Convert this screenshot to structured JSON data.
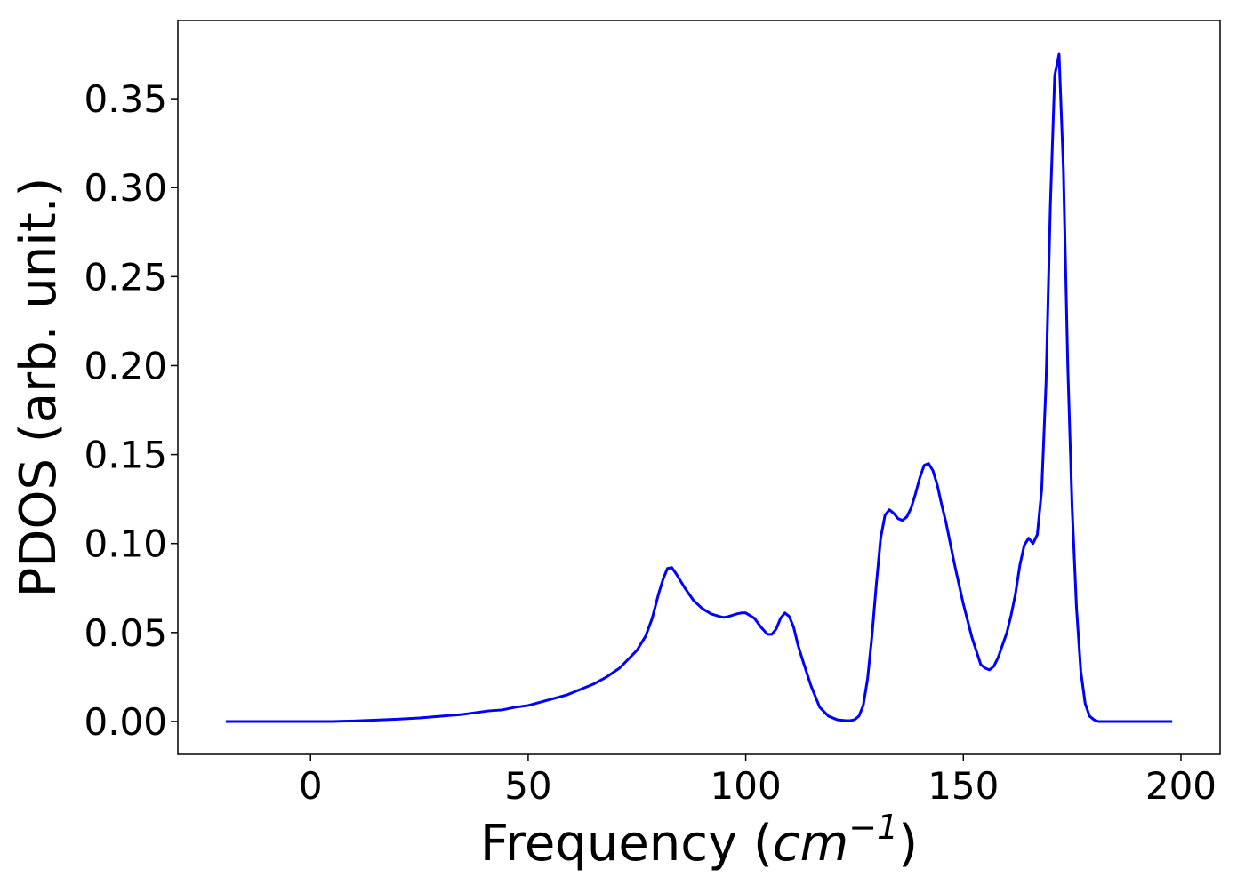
{
  "chart_data": {
    "type": "line",
    "title": "",
    "xlabel": "Frequency (",
    "xlabel_unit": "cm",
    "xlabel_exponent": "−1",
    "xlabel_close": ")",
    "ylabel": "PDOS (arb. unit.)",
    "xlim": [
      -30.5,
      209
    ],
    "ylim": [
      -0.0185,
      0.394
    ],
    "xticks": [
      0,
      50,
      100,
      150,
      200
    ],
    "xtick_labels": [
      "0",
      "50",
      "100",
      "150",
      "200"
    ],
    "yticks": [
      0.0,
      0.05,
      0.1,
      0.15,
      0.2,
      0.25,
      0.3,
      0.35
    ],
    "ytick_labels": [
      "0.00",
      "0.05",
      "0.10",
      "0.15",
      "0.20",
      "0.25",
      "0.30",
      "0.35"
    ],
    "grid": false,
    "series": [
      {
        "color": "#0000ff",
        "x": [
          -19.5,
          0,
          5,
          10,
          15,
          20,
          25,
          30,
          35,
          38,
          41,
          44,
          47,
          50,
          53,
          56,
          59,
          62,
          65,
          68,
          71,
          73,
          75,
          77,
          78.5,
          80,
          81,
          82,
          83,
          84,
          86,
          88,
          90,
          92,
          94,
          95,
          96,
          98,
          99,
          100,
          102,
          103.5,
          105,
          106,
          107,
          108,
          109,
          110,
          111,
          112,
          113,
          115,
          117,
          119,
          121,
          123,
          124,
          125,
          126,
          127,
          128,
          129,
          130,
          131,
          132,
          133,
          134,
          135,
          136,
          137,
          138,
          139,
          140,
          141,
          142,
          143,
          144,
          145,
          146,
          147,
          148,
          150,
          152,
          154,
          155,
          156,
          157,
          158,
          159,
          160,
          161,
          162,
          163,
          164,
          165,
          166,
          167,
          168,
          169,
          170,
          171,
          172,
          173,
          174,
          175,
          176,
          177,
          178,
          179,
          180,
          181,
          182,
          183,
          184,
          186,
          190,
          198
        ],
        "y": [
          0,
          0,
          0,
          0.0003,
          0.0008,
          0.0013,
          0.002,
          0.003,
          0.004,
          0.005,
          0.006,
          0.0065,
          0.008,
          0.009,
          0.011,
          0.013,
          0.015,
          0.018,
          0.021,
          0.025,
          0.03,
          0.035,
          0.04,
          0.048,
          0.058,
          0.072,
          0.08,
          0.086,
          0.0865,
          0.083,
          0.075,
          0.068,
          0.0635,
          0.0605,
          0.059,
          0.0585,
          0.059,
          0.0605,
          0.061,
          0.061,
          0.058,
          0.053,
          0.049,
          0.049,
          0.052,
          0.058,
          0.061,
          0.059,
          0.053,
          0.043,
          0.035,
          0.02,
          0.008,
          0.003,
          0.001,
          0.0005,
          0.0005,
          0.001,
          0.003,
          0.009,
          0.024,
          0.048,
          0.077,
          0.103,
          0.116,
          0.119,
          0.117,
          0.114,
          0.113,
          0.115,
          0.12,
          0.128,
          0.137,
          0.144,
          0.145,
          0.141,
          0.133,
          0.122,
          0.112,
          0.1,
          0.088,
          0.066,
          0.047,
          0.032,
          0.03,
          0.029,
          0.031,
          0.036,
          0.043,
          0.05,
          0.06,
          0.072,
          0.088,
          0.099,
          0.103,
          0.1,
          0.105,
          0.13,
          0.19,
          0.29,
          0.363,
          0.375,
          0.31,
          0.2,
          0.12,
          0.064,
          0.028,
          0.01,
          0.003,
          0.001,
          0,
          0,
          0,
          0,
          0,
          0,
          0
        ]
      }
    ]
  }
}
